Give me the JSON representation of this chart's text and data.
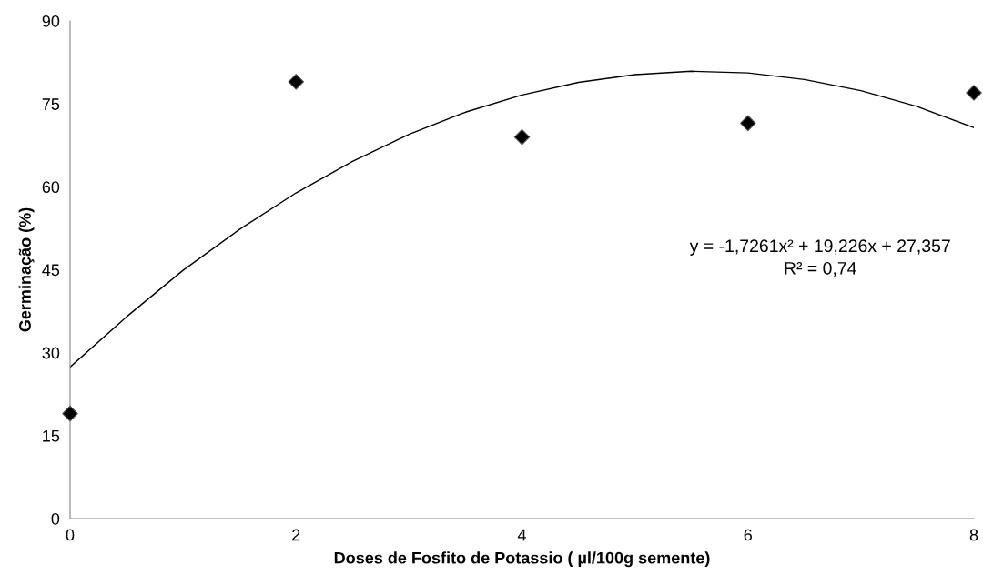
{
  "chart_data": {
    "type": "scatter",
    "xlabel": "Doses de Fosfito de Potassio ( µl/100g semente)",
    "ylabel": "Germinação (%)",
    "xlim": [
      0,
      8
    ],
    "xticks": [
      0,
      2,
      4,
      6,
      8
    ],
    "ylim": [
      0,
      90
    ],
    "yticks": [
      0,
      15,
      30,
      45,
      60,
      75,
      90
    ],
    "grid": false,
    "legend": false,
    "marker": "diamond",
    "series": [
      {
        "color": "#000000",
        "x": [
          0,
          2,
          4,
          6,
          8
        ],
        "values": [
          19.0,
          79.0,
          69.0,
          71.5,
          77.0
        ]
      },
      {
        "type": "line",
        "color": "#000000",
        "marker": "none",
        "x": [
          0,
          0.5,
          1,
          1.5,
          2,
          2.5,
          3,
          3.5,
          4,
          4.5,
          5,
          5.5,
          6,
          6.5,
          7,
          7.5,
          8
        ],
        "values": [
          27.4,
          36.5,
          44.9,
          52.3,
          58.9,
          64.6,
          69.5,
          73.5,
          76.6,
          78.9,
          80.3,
          80.9,
          80.6,
          79.4,
          77.4,
          74.5,
          70.7
        ]
      }
    ],
    "annotations": [
      "y = -1,7261x² + 19,226x + 27,357",
      "R² = 0,74"
    ]
  }
}
